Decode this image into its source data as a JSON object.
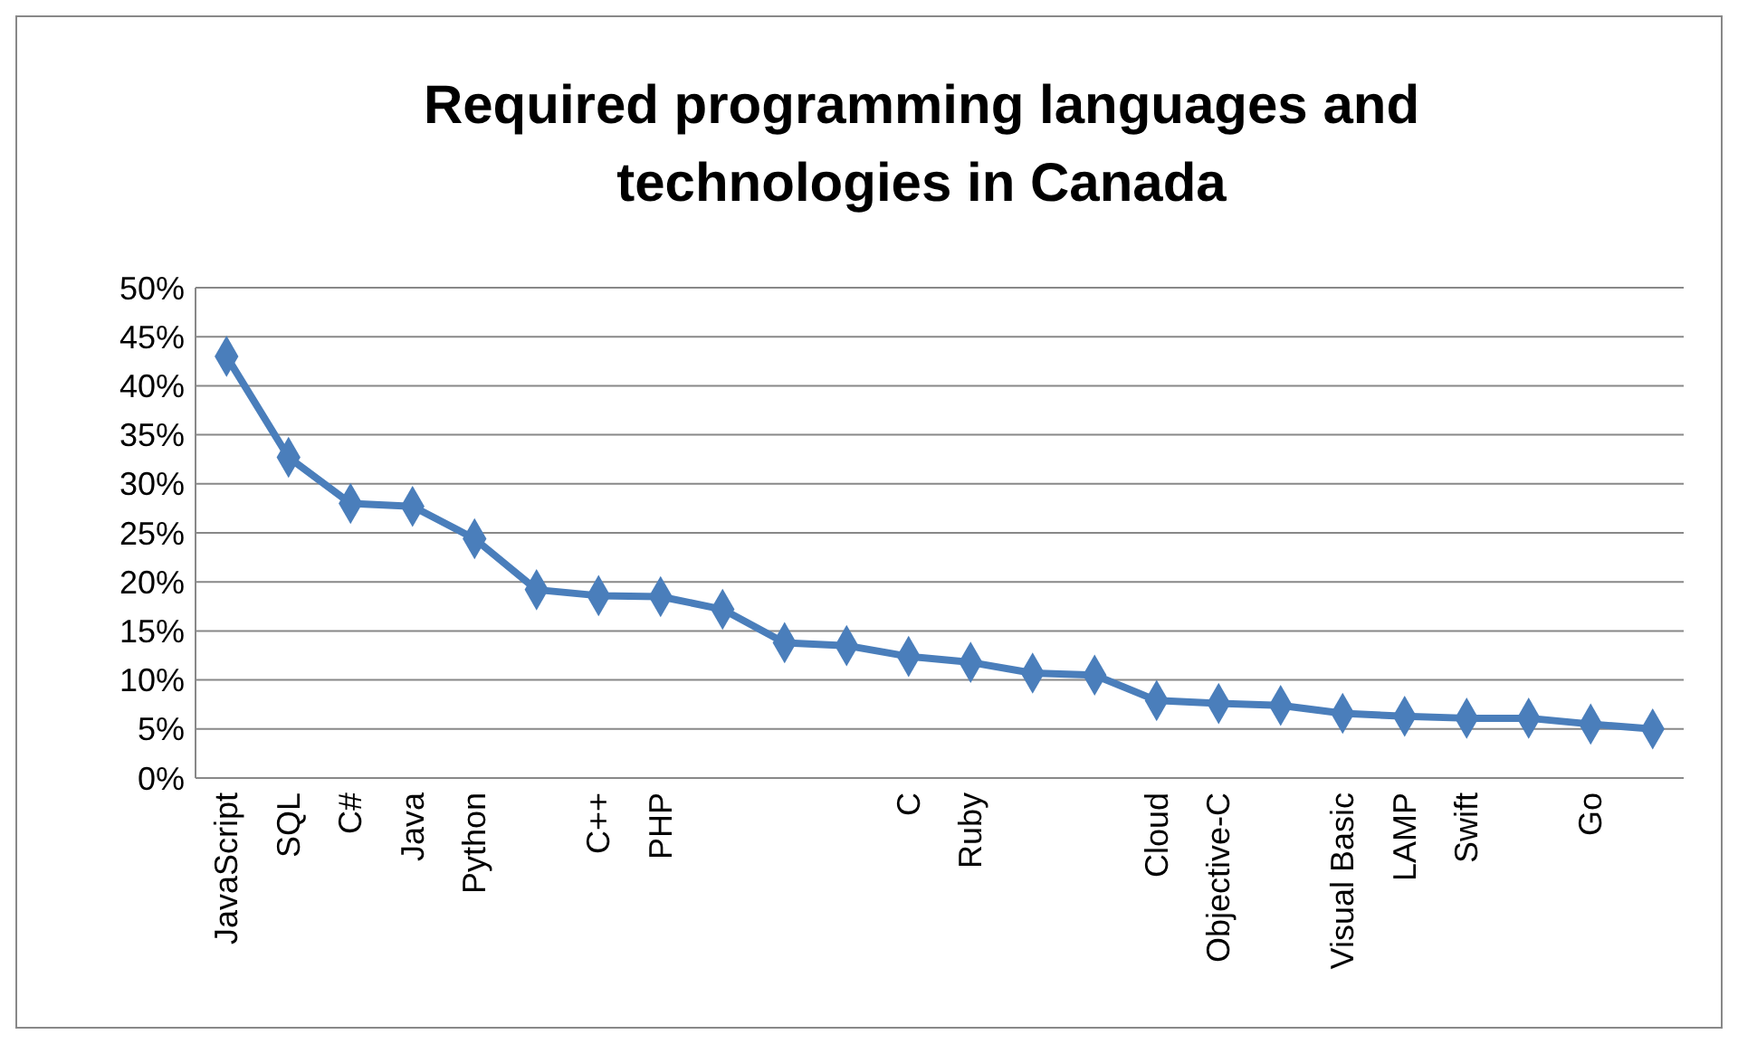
{
  "chart_data": {
    "type": "line",
    "title": "Required programming languages and technologies in Canada",
    "categories": [
      "JavaScript",
      "SQL",
      "C#",
      "Java",
      "Python",
      null,
      "C++",
      "PHP",
      null,
      null,
      null,
      "C",
      "Ruby",
      null,
      null,
      "Cloud",
      "Objective-C",
      null,
      "Visual Basic",
      "LAMP",
      "Swift",
      null,
      "Go",
      null
    ],
    "series": [
      {
        "color": "#4a7ebb",
        "values": [
          43.0,
          32.7,
          28.0,
          27.7,
          24.4,
          19.2,
          18.6,
          18.5,
          17.2,
          13.8,
          13.5,
          12.4,
          11.8,
          10.7,
          10.5,
          7.9,
          7.6,
          7.4,
          6.6,
          6.3,
          6.1,
          6.1,
          5.5,
          5.0
        ]
      }
    ],
    "ylim": [
      0,
      50
    ],
    "yticks": [
      {
        "value": 0,
        "label": "0%"
      },
      {
        "value": 5,
        "label": "5%"
      },
      {
        "value": 10,
        "label": "10%"
      },
      {
        "value": 15,
        "label": "15%"
      },
      {
        "value": 20,
        "label": "20%"
      },
      {
        "value": 25,
        "label": "25%"
      },
      {
        "value": 30,
        "label": "30%"
      },
      {
        "value": 35,
        "label": "35%"
      },
      {
        "value": 40,
        "label": "40%"
      },
      {
        "value": 45,
        "label": "45%"
      },
      {
        "value": 50,
        "label": "50%"
      }
    ],
    "grid": "y",
    "marker": "diamond",
    "line_style": "solid"
  }
}
